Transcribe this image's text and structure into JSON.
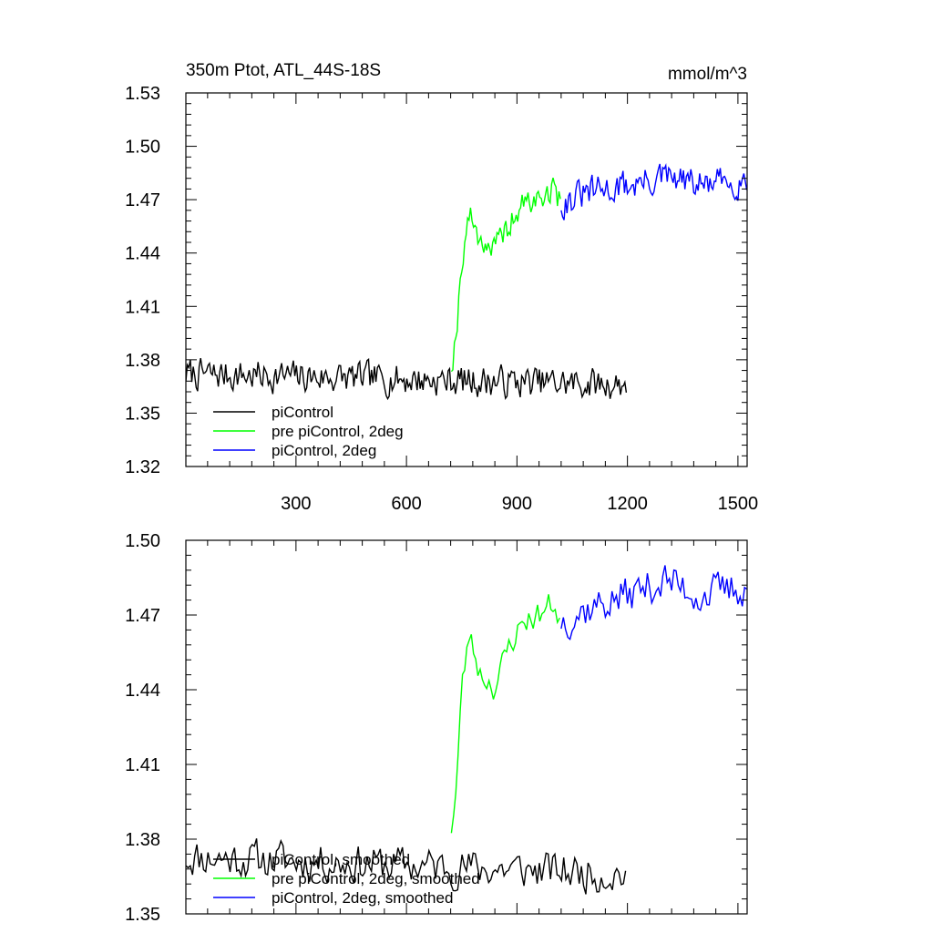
{
  "figure": {
    "title_left": "350m Ptot, ATL_44S-18S",
    "title_right": "mmol/m^3"
  },
  "colors": {
    "piControl": "#000000",
    "pre_piControl_2deg": "#00ff00",
    "piControl_2deg": "#0000ff",
    "axes": "#000000",
    "background": "#ffffff"
  },
  "chart_data": [
    {
      "type": "line",
      "title": "350m Ptot, ATL_44S-18S",
      "units_label": "mmol/m^3",
      "xlim": [
        1,
        1525
      ],
      "ylim": [
        1.32,
        1.53
      ],
      "xticks": [
        300,
        600,
        900,
        1200,
        1500
      ],
      "xtick_labels": [
        "300",
        "600",
        "900",
        "1200",
        "1500"
      ],
      "yticks": [
        1.32,
        1.35,
        1.38,
        1.41,
        1.44,
        1.47,
        1.5,
        1.53
      ],
      "ytick_labels": [
        "1.32",
        "1.35",
        "1.38",
        "1.41",
        "1.44",
        "1.47",
        "1.50",
        "1.53"
      ],
      "grid": false,
      "legend_position": "lower-left",
      "series": [
        {
          "name": "piControl",
          "color_key": "piControl",
          "x_start": 1,
          "x_end": 1200,
          "step": 4,
          "mean": 1.372,
          "noise": 0.008,
          "trend": -0.006,
          "seed": 7,
          "trace": [
            [
              1,
              1.372
            ],
            [
              1200,
              1.366
            ]
          ]
        },
        {
          "name": "pre piControl, 2deg",
          "color_key": "pre_piControl_2deg",
          "x_start": 722,
          "x_end": 1020,
          "step": 4,
          "noise": 0.007,
          "seed": 19,
          "trace": [
            [
              722,
              1.377
            ],
            [
              735,
              1.395
            ],
            [
              750,
              1.435
            ],
            [
              770,
              1.462
            ],
            [
              800,
              1.448
            ],
            [
              840,
              1.442
            ],
            [
              880,
              1.456
            ],
            [
              920,
              1.468
            ],
            [
              960,
              1.47
            ],
            [
              1000,
              1.476
            ],
            [
              1020,
              1.468
            ]
          ]
        },
        {
          "name": "piControl, 2deg",
          "color_key": "piControl_2deg",
          "x_start": 1020,
          "x_end": 1525,
          "step": 4,
          "noise": 0.008,
          "seed": 31,
          "trace": [
            [
              1020,
              1.468
            ],
            [
              1100,
              1.474
            ],
            [
              1200,
              1.478
            ],
            [
              1300,
              1.482
            ],
            [
              1400,
              1.478
            ],
            [
              1525,
              1.481
            ]
          ]
        }
      ]
    },
    {
      "type": "line",
      "xlim": [
        1,
        1525
      ],
      "ylim": [
        1.35,
        1.5
      ],
      "xticks": [
        300,
        600,
        900,
        1200,
        1500
      ],
      "xtick_labels": [],
      "yticks": [
        1.35,
        1.38,
        1.41,
        1.44,
        1.47,
        1.5
      ],
      "ytick_labels": [
        "1.35",
        "1.38",
        "1.41",
        "1.44",
        "1.47",
        "1.50"
      ],
      "grid": false,
      "legend_position": "lower-left",
      "series": [
        {
          "name": "piControl, smoothed",
          "color_key": "piControl",
          "x_start": 1,
          "x_end": 1200,
          "step": 6,
          "mean": 1.372,
          "noise": 0.007,
          "trend": -0.006,
          "seed": 11,
          "trace": [
            [
              1,
              1.373
            ],
            [
              1200,
              1.366
            ]
          ]
        },
        {
          "name": "pre piControl, 2deg, smoothed",
          "color_key": "pre_piControl_2deg",
          "x_start": 722,
          "x_end": 1020,
          "step": 6,
          "noise": 0.005,
          "seed": 23,
          "trace": [
            [
              722,
              1.385
            ],
            [
              735,
              1.4
            ],
            [
              750,
              1.44
            ],
            [
              770,
              1.462
            ],
            [
              800,
              1.447
            ],
            [
              840,
              1.441
            ],
            [
              880,
              1.458
            ],
            [
              920,
              1.468
            ],
            [
              960,
              1.47
            ],
            [
              1000,
              1.475
            ],
            [
              1020,
              1.467
            ]
          ]
        },
        {
          "name": "piControl, 2deg, smoothed",
          "color_key": "piControl_2deg",
          "x_start": 1020,
          "x_end": 1525,
          "step": 6,
          "noise": 0.007,
          "seed": 37,
          "trace": [
            [
              1020,
              1.468
            ],
            [
              1100,
              1.473
            ],
            [
              1200,
              1.478
            ],
            [
              1300,
              1.484
            ],
            [
              1400,
              1.478
            ],
            [
              1525,
              1.481
            ]
          ]
        }
      ]
    }
  ]
}
